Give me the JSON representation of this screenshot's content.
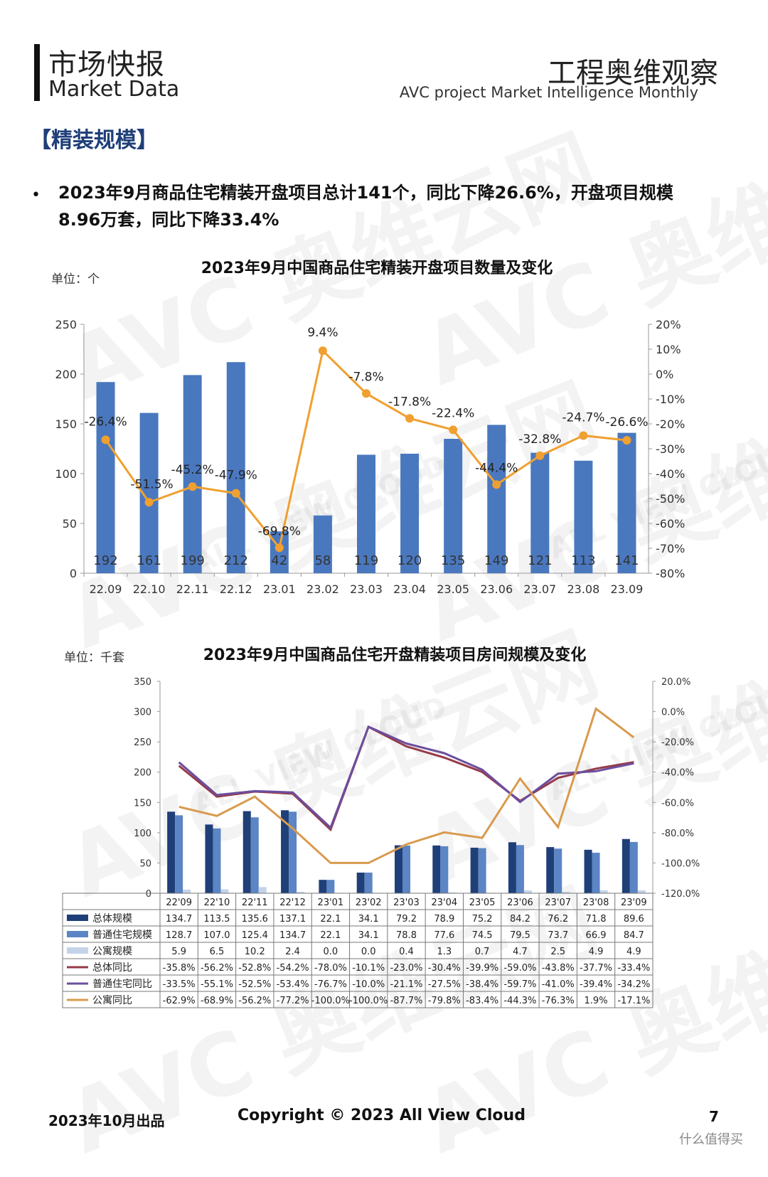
{
  "header": {
    "title_cn": "市场快报",
    "title_en": "Market Data",
    "right_cn": "工程奥维观察",
    "right_en": "AVC  project Market Intelligence Monthly"
  },
  "section_title": "【精装规模】",
  "bullet": "2023年9月商品住宅精装开盘项目总计141个，同比下降26.6%，开盘项目规模8.96万套，同比下降33.4%",
  "watermark": {
    "brand": "AVC 奥维云网",
    "sub": "ALL VIEW CLOUD"
  },
  "footer": {
    "date": "2023年10月出品",
    "copyright": "Copyright © 2023  All View Cloud",
    "page": "7",
    "logo_text": "什么值得买"
  },
  "colors": {
    "bar_blue": "#4a78bf",
    "line_orange": "#f0a030",
    "dark_navy": "#1f3f78",
    "mid_blue": "#5b85c4",
    "light_blue": "#c5d3ea",
    "total_yoy_red": "#963a4a",
    "normal_yoy_purple": "#6b4e9e",
    "apt_yoy_orange": "#d99a4e"
  },
  "chart_data": [
    {
      "type": "bar",
      "title": "2023年9月中国商品住宅精装开盘项目数量及变化",
      "unit_label": "单位：个",
      "categories": [
        "22.09",
        "22.10",
        "22.11",
        "22.12",
        "23.01",
        "23.02",
        "23.03",
        "23.04",
        "23.05",
        "23.06",
        "23.07",
        "23.08",
        "23.09"
      ],
      "series": [
        {
          "values": [
            192,
            161,
            199,
            212,
            42,
            58,
            119,
            120,
            135,
            149,
            121,
            113,
            141
          ]
        },
        {
          "type": "line",
          "axis": "right",
          "values": [
            -26.4,
            -51.5,
            -45.2,
            -47.9,
            -69.8,
            9.4,
            -7.8,
            -17.8,
            -22.4,
            -44.4,
            -32.8,
            -24.7,
            -26.6
          ],
          "labels": [
            "-26.4%",
            "-51.5%",
            "-45.2%",
            "-47.9%",
            "-69.8%",
            "9.4%",
            "-7.8%",
            "-17.8%",
            "-22.4%",
            "-44.4%",
            "-32.8%",
            "-24.7%",
            "-26.6%"
          ]
        }
      ],
      "ylim": [
        0,
        250
      ],
      "y_ticks": [
        0,
        50,
        100,
        150,
        200,
        250
      ],
      "y2lim": [
        -80,
        20
      ],
      "y2_ticks": [
        "-80%",
        "-70%",
        "-60%",
        "-50%",
        "-40%",
        "-30%",
        "-20%",
        "-10%",
        "0%",
        "10%",
        "20%"
      ]
    },
    {
      "type": "bar",
      "title": "2023年9月中国商品住宅开盘精装项目房间规模及变化",
      "unit_label": "单位：千套",
      "categories": [
        "22'09",
        "22'10",
        "22'11",
        "22'12",
        "23'01",
        "23'02",
        "23'03",
        "23'04",
        "23'05",
        "23'06",
        "23'07",
        "23'08",
        "23'09"
      ],
      "ylim": [
        0,
        350
      ],
      "y_ticks": [
        0,
        50,
        100,
        150,
        200,
        250,
        300,
        350
      ],
      "y2lim": [
        -120,
        20
      ],
      "y2_ticks": [
        "-120.0%",
        "-100.0%",
        "-80.0%",
        "-60.0%",
        "-40.0%",
        "-20.0%",
        "0.0%",
        "20.0%"
      ],
      "series": [
        {
          "name": "总体规模",
          "kind": "bar",
          "color": "#1f3f78",
          "values": [
            134.7,
            113.5,
            135.6,
            137.1,
            22.1,
            34.1,
            79.2,
            78.9,
            75.2,
            84.2,
            76.2,
            71.8,
            89.6
          ],
          "labels": [
            "134.7",
            "113.5",
            "135.6",
            "137.1",
            "22.1",
            "34.1",
            "79.2",
            "78.9",
            "75.2",
            "84.2",
            "76.2",
            "71.8",
            "89.6"
          ]
        },
        {
          "name": "普通住宅规模",
          "kind": "bar",
          "color": "#5b85c4",
          "values": [
            128.7,
            107.0,
            125.4,
            134.7,
            22.1,
            34.1,
            78.8,
            77.6,
            74.5,
            79.5,
            73.7,
            66.9,
            84.7
          ],
          "labels": [
            "128.7",
            "107.0",
            "125.4",
            "134.7",
            "22.1",
            "34.1",
            "78.8",
            "77.6",
            "74.5",
            "79.5",
            "73.7",
            "66.9",
            "84.7"
          ]
        },
        {
          "name": "公寓规模",
          "kind": "bar",
          "color": "#c5d3ea",
          "values": [
            5.9,
            6.5,
            10.2,
            2.4,
            0.0,
            0.0,
            0.4,
            1.3,
            0.7,
            4.7,
            2.5,
            4.9,
            4.9
          ],
          "labels": [
            "5.9",
            "6.5",
            "10.2",
            "2.4",
            "0.0",
            "0.0",
            "0.4",
            "1.3",
            "0.7",
            "4.7",
            "2.5",
            "4.9",
            "4.9"
          ]
        },
        {
          "name": "总体同比",
          "kind": "line",
          "color": "#963a4a",
          "values": [
            -35.8,
            -56.2,
            -52.8,
            -54.2,
            -78.0,
            -10.1,
            -23.0,
            -30.4,
            -39.9,
            -59.0,
            -43.8,
            -37.7,
            -33.4
          ],
          "labels": [
            "-35.8%",
            "-56.2%",
            "-52.8%",
            "-54.2%",
            "-78.0%",
            "-10.1%",
            "-23.0%",
            "-30.4%",
            "-39.9%",
            "-59.0%",
            "-43.8%",
            "-37.7%",
            "-33.4%"
          ]
        },
        {
          "name": "普通住宅同比",
          "kind": "line",
          "color": "#6b4e9e",
          "values": [
            -33.5,
            -55.1,
            -52.5,
            -53.4,
            -76.7,
            -10.0,
            -21.1,
            -27.5,
            -38.4,
            -59.7,
            -41.0,
            -39.4,
            -34.2
          ],
          "labels": [
            "-33.5%",
            "-55.1%",
            "-52.5%",
            "-53.4%",
            "-76.7%",
            "-10.0%",
            "-21.1%",
            "-27.5%",
            "-38.4%",
            "-59.7%",
            "-41.0%",
            "-39.4%",
            "-34.2%"
          ]
        },
        {
          "name": "公寓同比",
          "kind": "line",
          "color": "#d99a4e",
          "values": [
            -62.9,
            -68.9,
            -56.2,
            -77.2,
            -100.0,
            -100.0,
            -87.7,
            -79.8,
            -83.4,
            -44.3,
            -76.3,
            1.9,
            -17.1
          ],
          "labels": [
            "-62.9%",
            "-68.9%",
            "-56.2%",
            "-77.2%",
            "-100.0%",
            "-100.0%",
            "-87.7%",
            "-79.8%",
            "-83.4%",
            "-44.3%",
            "-76.3%",
            "1.9%",
            "-17.1%"
          ]
        }
      ]
    }
  ]
}
